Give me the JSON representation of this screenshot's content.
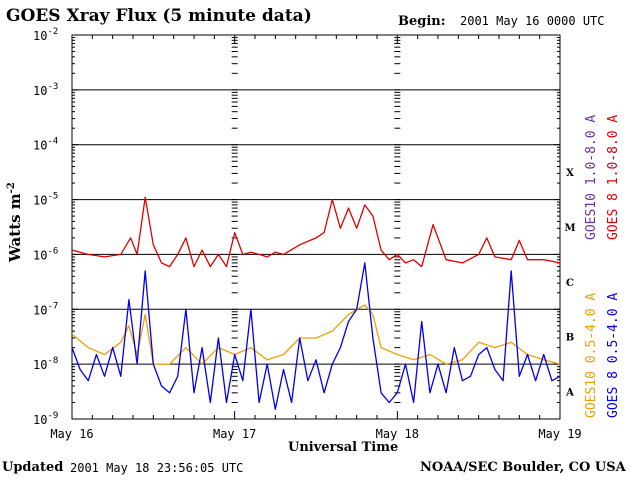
{
  "header": {
    "title": "GOES Xray Flux (5 minute data)",
    "begin_label": "Begin:",
    "begin_value": "2001 May 16 0000 UTC"
  },
  "footer": {
    "updated_label": "Updated",
    "updated_value": "2001 May 18 23:56:05 UTC",
    "source": "NOAA/SEC Boulder, CO USA"
  },
  "colors": {
    "goes8_long": "#e00000",
    "goes10_long": "#7030a0",
    "goes10_short": "#f0a000",
    "goes8_short": "#0000ee"
  },
  "chart_data": {
    "type": "line",
    "xlabel": "Universal Time",
    "ylabel": "Watts m",
    "ylabel_sup": "-2",
    "y_scale": "log",
    "ylim_exponents": [
      -9,
      -2
    ],
    "y_tick_labels": [
      {
        "exp": -2,
        "base": "10",
        "sup": "-2"
      },
      {
        "exp": -3,
        "base": "10",
        "sup": "-3"
      },
      {
        "exp": -4,
        "base": "10",
        "sup": "-4"
      },
      {
        "exp": -5,
        "base": "10",
        "sup": "-5"
      },
      {
        "exp": -6,
        "base": "10",
        "sup": "-6"
      },
      {
        "exp": -7,
        "base": "10",
        "sup": "-7"
      },
      {
        "exp": -8,
        "base": "10",
        "sup": "-8"
      },
      {
        "exp": -9,
        "base": "10",
        "sup": "-9"
      }
    ],
    "x_range_days": [
      0,
      3
    ],
    "x_tick_labels": [
      {
        "day": 0,
        "label": "May 16"
      },
      {
        "day": 1,
        "label": "May 17"
      },
      {
        "day": 2,
        "label": "May 18"
      },
      {
        "day": 3,
        "label": "May 19"
      }
    ],
    "flare_classes": [
      {
        "label": "X",
        "exp": -4
      },
      {
        "label": "M",
        "exp": -5
      },
      {
        "label": "C",
        "exp": -6
      },
      {
        "label": "B",
        "exp": -7
      },
      {
        "label": "A",
        "exp": -8
      }
    ],
    "grid": "horizontal",
    "legend": [
      {
        "name": "GOES10 1.0-8.0 A",
        "color": "#7030a0"
      },
      {
        "name": "GOES 8 1.0-8.0 A",
        "color": "#e00000"
      },
      {
        "name": "GOES10 0.5-4.0 A",
        "color": "#f0a000"
      },
      {
        "name": "GOES 8 0.5-4.0 A",
        "color": "#0000ee"
      }
    ],
    "series": [
      {
        "name": "GOES 8 1.0-8.0 A",
        "color": "#e00000",
        "x": [
          0,
          0.1,
          0.2,
          0.3,
          0.36,
          0.4,
          0.45,
          0.5,
          0.55,
          0.6,
          0.65,
          0.7,
          0.75,
          0.8,
          0.85,
          0.9,
          0.95,
          1.0,
          1.05,
          1.1,
          1.15,
          1.2,
          1.25,
          1.3,
          1.4,
          1.5,
          1.55,
          1.6,
          1.65,
          1.7,
          1.75,
          1.8,
          1.85,
          1.9,
          1.95,
          2.0,
          2.05,
          2.1,
          2.15,
          2.22,
          2.3,
          2.4,
          2.5,
          2.55,
          2.6,
          2.7,
          2.75,
          2.8,
          2.9,
          3.0
        ],
        "y": [
          1.2e-06,
          1e-06,
          9e-07,
          1e-06,
          2e-06,
          1e-06,
          1.1e-05,
          1.5e-06,
          7e-07,
          6e-07,
          1e-06,
          2e-06,
          6e-07,
          1.2e-06,
          6e-07,
          1e-06,
          6e-07,
          2.5e-06,
          1e-06,
          1.1e-06,
          1e-06,
          9e-07,
          1.1e-06,
          1e-06,
          1.5e-06,
          2e-06,
          2.5e-06,
          1e-05,
          3e-06,
          7e-06,
          3e-06,
          8e-06,
          5e-06,
          1.2e-06,
          8e-07,
          1e-06,
          7e-07,
          8e-07,
          6e-07,
          3.5e-06,
          8e-07,
          7e-07,
          1e-06,
          2e-06,
          9e-07,
          8e-07,
          1.8e-06,
          8e-07,
          8e-07,
          7e-07
        ]
      },
      {
        "name": "GOES10 0.5-4.0 A",
        "color": "#f0a000",
        "x": [
          0,
          0.1,
          0.2,
          0.3,
          0.35,
          0.4,
          0.45,
          0.5,
          0.6,
          0.7,
          0.8,
          0.9,
          1.0,
          1.1,
          1.2,
          1.3,
          1.4,
          1.5,
          1.6,
          1.7,
          1.75,
          1.8,
          1.85,
          1.9,
          2.0,
          2.1,
          2.2,
          2.3,
          2.4,
          2.5,
          2.6,
          2.7,
          2.8,
          2.9,
          3.0
        ],
        "y": [
          3.5e-08,
          2e-08,
          1.5e-08,
          2.5e-08,
          5e-08,
          1.5e-08,
          8e-08,
          1e-08,
          1e-08,
          2e-08,
          1e-08,
          2e-08,
          1.5e-08,
          2e-08,
          1.2e-08,
          1.5e-08,
          3e-08,
          3e-08,
          4e-08,
          8e-08,
          1e-07,
          1.2e-07,
          8e-08,
          2e-08,
          1.5e-08,
          1.2e-08,
          1.5e-08,
          1e-08,
          1.2e-08,
          2.5e-08,
          2e-08,
          2.5e-08,
          1.5e-08,
          1.2e-08,
          1e-08
        ]
      },
      {
        "name": "GOES 8 0.5-4.0 A",
        "color": "#0000ee",
        "x": [
          0,
          0.05,
          0.1,
          0.15,
          0.2,
          0.25,
          0.3,
          0.35,
          0.4,
          0.45,
          0.5,
          0.55,
          0.6,
          0.65,
          0.7,
          0.75,
          0.8,
          0.85,
          0.9,
          0.95,
          1.0,
          1.05,
          1.1,
          1.15,
          1.2,
          1.25,
          1.3,
          1.35,
          1.4,
          1.45,
          1.5,
          1.55,
          1.6,
          1.65,
          1.7,
          1.75,
          1.8,
          1.85,
          1.9,
          1.95,
          2.0,
          2.05,
          2.1,
          2.15,
          2.2,
          2.25,
          2.3,
          2.35,
          2.4,
          2.45,
          2.5,
          2.55,
          2.6,
          2.65,
          2.7,
          2.75,
          2.8,
          2.85,
          2.9,
          2.95,
          3.0
        ],
        "y": [
          2e-08,
          8e-09,
          5e-09,
          1.5e-08,
          6e-09,
          2e-08,
          6e-09,
          1.5e-07,
          1e-08,
          5e-07,
          1e-08,
          4e-09,
          3e-09,
          6e-09,
          1e-07,
          3e-09,
          2e-08,
          2e-09,
          3e-08,
          2e-09,
          1.5e-08,
          5e-09,
          1e-07,
          2e-09,
          1e-08,
          1.5e-09,
          8e-09,
          2e-09,
          3e-08,
          5e-09,
          1.2e-08,
          3e-09,
          1e-08,
          2e-08,
          6e-08,
          1e-07,
          7e-07,
          3e-08,
          3e-09,
          2e-09,
          3e-09,
          1e-08,
          2e-09,
          6e-08,
          3e-09,
          1e-08,
          3e-09,
          2e-08,
          5e-09,
          6e-09,
          1.5e-08,
          2e-08,
          8e-09,
          5e-09,
          5e-07,
          6e-09,
          1.5e-08,
          5e-09,
          1.5e-08,
          5e-09,
          6e-09
        ]
      }
    ]
  }
}
